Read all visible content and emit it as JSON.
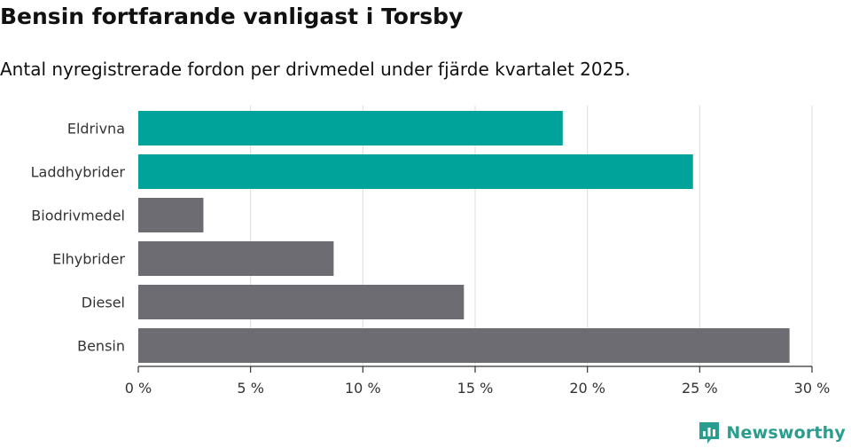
{
  "header": {
    "title": "Bensin fortfarande vanligast i Torsby",
    "subtitle": "Antal nyregistrerade fordon per drivmedel under fjärde kvartalet 2025."
  },
  "brand": {
    "name": "Newsworthy",
    "color": "#2a9d8f",
    "icon": "newsworthy-logo-icon"
  },
  "chart_data": {
    "type": "bar",
    "orientation": "horizontal",
    "title": "Bensin fortfarande vanligast i Torsby",
    "subtitle": "Antal nyregistrerade fordon per drivmedel under fjärde kvartalet 2025.",
    "categories": [
      "Eldrivna",
      "Laddhybrider",
      "Biodrivmedel",
      "Elhybrider",
      "Diesel",
      "Bensin"
    ],
    "values": [
      18.9,
      24.7,
      2.9,
      8.7,
      14.5,
      29.0
    ],
    "colors": [
      "#00a39a",
      "#00a39a",
      "#6d6c73",
      "#6d6c73",
      "#6d6c73",
      "#6d6c73"
    ],
    "xlim": [
      0,
      30
    ],
    "xticks": [
      0,
      5,
      10,
      15,
      20,
      25,
      30
    ],
    "xtick_labels": [
      "0 %",
      "5 %",
      "10 %",
      "15 %",
      "20 %",
      "25 %",
      "30 %"
    ],
    "xlabel": "",
    "ylabel": "",
    "grid": true
  }
}
